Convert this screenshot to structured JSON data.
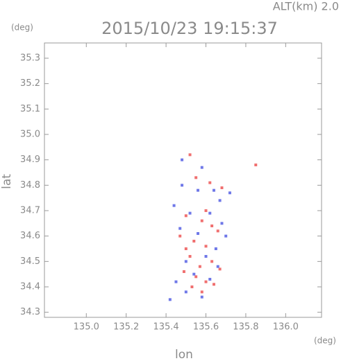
{
  "chart_data": {
    "type": "scatter",
    "title": "2015/10/23 19:15:37",
    "subtitle": "ALT(km)  2.0",
    "x_label": "lon",
    "y_label": "lat",
    "x_unit": "(deg)",
    "y_unit": "(deg)",
    "xlim": [
      134.79,
      136.18
    ],
    "ylim": [
      34.28,
      35.36
    ],
    "xticks": [
      {
        "value": 135,
        "label": "135.0"
      },
      135.2,
      135.4,
      135.6,
      135.8,
      {
        "value": 136,
        "label": "136.0"
      }
    ],
    "yticks": [
      35.3,
      35.2,
      35.1,
      {
        "value": 35,
        "label": "35.0"
      },
      34.9,
      34.8,
      34.7,
      34.6,
      34.5,
      34.4,
      34.3
    ],
    "series": [
      {
        "color": "#f07070",
        "x": [
          135.52,
          135.55,
          135.62,
          135.68,
          135.85,
          135.5,
          135.58,
          135.63,
          135.47,
          135.54,
          135.6,
          135.66,
          135.52,
          135.57,
          135.63,
          135.49,
          135.55,
          135.6,
          135.67,
          135.53,
          135.58,
          135.64,
          135.5,
          135.6
        ],
        "values": [
          34.92,
          34.83,
          34.81,
          34.79,
          34.88,
          34.68,
          34.66,
          34.64,
          34.6,
          34.58,
          34.56,
          34.62,
          34.52,
          34.48,
          34.5,
          34.46,
          34.44,
          34.42,
          34.47,
          34.4,
          34.38,
          34.41,
          34.55,
          34.7
        ]
      },
      {
        "color": "#6f78e8",
        "x": [
          135.48,
          135.58,
          135.64,
          135.72,
          135.44,
          135.52,
          135.62,
          135.68,
          135.47,
          135.56,
          135.65,
          135.5,
          135.6,
          135.66,
          135.54,
          135.62,
          135.45,
          135.5,
          135.58,
          135.42,
          135.7,
          135.48,
          135.56,
          135.67
        ],
        "values": [
          34.9,
          34.87,
          34.78,
          34.77,
          34.72,
          34.69,
          34.69,
          34.65,
          34.63,
          34.61,
          34.55,
          34.5,
          34.52,
          34.48,
          34.45,
          34.43,
          34.42,
          34.38,
          34.36,
          34.35,
          34.6,
          34.8,
          34.78,
          34.74
        ]
      }
    ]
  }
}
